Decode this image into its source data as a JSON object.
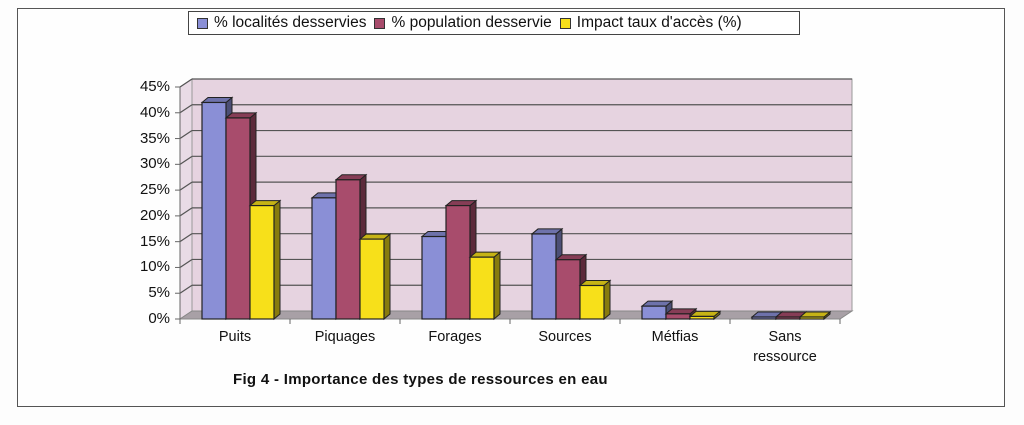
{
  "chart_data": {
    "type": "bar",
    "subtype": "3d-clustered-column",
    "title": "Fig 4 - Importance des types de ressources en eau",
    "xlabel": "",
    "ylabel": "",
    "categories": [
      "Puits",
      "Piquages",
      "Forages",
      "Sources",
      "Métfias",
      "Sans ressource"
    ],
    "series": [
      {
        "name": "% localités desservies",
        "color": "#8a8fd6",
        "values": [
          42,
          23.5,
          16,
          16.5,
          2.5,
          0.3
        ]
      },
      {
        "name": "% population desservie",
        "color": "#a84c6c",
        "values": [
          39,
          27,
          22,
          11.5,
          1,
          0.3
        ]
      },
      {
        "name": "Impact taux d'accès (%)",
        "color": "#f7e01a",
        "values": [
          22,
          15.5,
          12,
          6.5,
          0.5,
          0.2
        ]
      }
    ],
    "ylim": [
      0,
      45
    ],
    "yticks": [
      "0%",
      "5%",
      "10%",
      "15%",
      "20%",
      "25%",
      "30%",
      "35%",
      "40%",
      "45%"
    ],
    "grid": true,
    "legend_position": "top",
    "plot_background": "#e6d3e0"
  },
  "legend": {
    "items": [
      {
        "label": "% localités desservies",
        "color": "#8a8fd6"
      },
      {
        "label": "% population desservie",
        "color": "#a84c6c"
      },
      {
        "label": "Impact taux d'accès (%)",
        "color": "#f7e01a"
      }
    ]
  },
  "axis": {
    "yticks": [
      "45%",
      "40%",
      "35%",
      "30%",
      "25%",
      "20%",
      "15%",
      "10%",
      "5%",
      "0%"
    ],
    "categories": [
      "Puits",
      "Piquages",
      "Forages",
      "Sources",
      "Métfias",
      "Sans ressource"
    ]
  },
  "caption": "Fig 4 - Importance des types de ressources en eau"
}
